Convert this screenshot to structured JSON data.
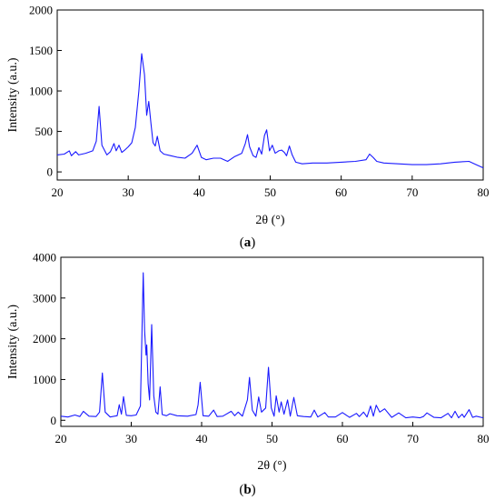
{
  "charts": [
    {
      "panel_label_open": "(",
      "panel_label_letter": "a",
      "panel_label_close": ")",
      "xlabel": "2θ (°)",
      "ylabel": "Intensity (a.u.)",
      "line_color": "#1a1aff"
    },
    {
      "panel_label_open": "(",
      "panel_label_letter": "b",
      "panel_label_close": ")",
      "xlabel": "2θ (°)",
      "ylabel": "Intensity (a.u.)",
      "line_color": "#1a1aff"
    }
  ],
  "chart_data": [
    {
      "type": "line",
      "title": "",
      "xlabel": "2θ (°)",
      "ylabel": "Intensity (a.u.)",
      "xlim": [
        20,
        80
      ],
      "ylim": [
        -100,
        2000
      ],
      "xticks": [
        20,
        30,
        40,
        50,
        60,
        70,
        80
      ],
      "yticks": [
        0,
        500,
        1000,
        1500,
        2000
      ],
      "grid": false,
      "series": [
        {
          "x": [
            20,
            21,
            21.7,
            22,
            22.6,
            23,
            24,
            25,
            25.5,
            25.9,
            26.3,
            27,
            27.5,
            28,
            28.3,
            28.7,
            29.1,
            29.5,
            30,
            30.5,
            31,
            31.5,
            31.9,
            32.3,
            32.6,
            32.9,
            33.2,
            33.5,
            33.8,
            34.1,
            34.5,
            35,
            36,
            37,
            38,
            39,
            39.7,
            40.3,
            41,
            42,
            43,
            44,
            45,
            46,
            46.5,
            46.8,
            47.1,
            47.6,
            48,
            48.4,
            48.8,
            49.2,
            49.5,
            49.9,
            50.3,
            50.7,
            51.2,
            51.6,
            52,
            52.3,
            52.7,
            53.1,
            53.6,
            54.5,
            56,
            58,
            60,
            62,
            63.5,
            64,
            64.5,
            65,
            66,
            68,
            70,
            72,
            74,
            76,
            78,
            79,
            80
          ],
          "y": [
            210,
            220,
            260,
            200,
            250,
            210,
            230,
            260,
            380,
            810,
            330,
            210,
            250,
            350,
            260,
            330,
            240,
            270,
            310,
            360,
            550,
            1000,
            1460,
            1200,
            700,
            870,
            600,
            360,
            320,
            440,
            260,
            220,
            200,
            180,
            170,
            230,
            330,
            180,
            150,
            170,
            170,
            130,
            190,
            230,
            350,
            460,
            310,
            200,
            180,
            300,
            220,
            450,
            520,
            260,
            330,
            230,
            260,
            270,
            240,
            200,
            320,
            210,
            120,
            100,
            110,
            110,
            120,
            130,
            150,
            220,
            180,
            130,
            110,
            100,
            90,
            90,
            100,
            120,
            130,
            90,
            50
          ]
        }
      ]
    },
    {
      "type": "line",
      "title": "",
      "xlabel": "2θ (°)",
      "ylabel": "Intensity (a.u.)",
      "xlim": [
        20,
        80
      ],
      "ylim": [
        -150,
        4000
      ],
      "xticks": [
        20,
        30,
        40,
        50,
        60,
        70,
        80
      ],
      "yticks": [
        0,
        1000,
        2000,
        3000,
        4000
      ],
      "grid": false,
      "series": [
        {
          "x": [
            20,
            21,
            22,
            22.7,
            23.2,
            24,
            25,
            25.5,
            25.9,
            26.3,
            27,
            28,
            28.3,
            28.6,
            28.9,
            29.3,
            30,
            30.7,
            31.3,
            31.7,
            31.9,
            32.1,
            32.2,
            32.4,
            32.6,
            32.9,
            33.2,
            33.5,
            33.8,
            34.1,
            34.4,
            35,
            35.5,
            36.5,
            38,
            39.2,
            39.5,
            39.8,
            40.2,
            41,
            41.7,
            42.2,
            43,
            44.2,
            44.7,
            45.2,
            45.8,
            46.5,
            46.8,
            47.2,
            47.7,
            48.1,
            48.5,
            49.1,
            49.5,
            49.9,
            50.3,
            50.6,
            51,
            51.3,
            51.7,
            52.2,
            52.6,
            53.1,
            53.6,
            54.5,
            55.5,
            56,
            56.5,
            57.5,
            58,
            59,
            60,
            61,
            62,
            62.4,
            63,
            63.5,
            64,
            64.4,
            64.8,
            65.3,
            66,
            67,
            68,
            69,
            70,
            71,
            71.5,
            72,
            73,
            74,
            75,
            75.5,
            76,
            76.5,
            77,
            77.3,
            78,
            78.5,
            79,
            80
          ],
          "y": [
            100,
            80,
            130,
            90,
            220,
            100,
            90,
            200,
            1160,
            200,
            80,
            110,
            380,
            150,
            580,
            120,
            110,
            130,
            350,
            3620,
            2200,
            1600,
            1850,
            900,
            500,
            2350,
            600,
            200,
            150,
            820,
            140,
            110,
            160,
            110,
            100,
            140,
            380,
            930,
            110,
            100,
            250,
            90,
            100,
            220,
            110,
            200,
            100,
            500,
            1050,
            250,
            100,
            570,
            200,
            300,
            1300,
            300,
            100,
            600,
            200,
            450,
            150,
            500,
            100,
            560,
            110,
            90,
            80,
            250,
            80,
            190,
            80,
            80,
            190,
            70,
            170,
            90,
            200,
            80,
            350,
            100,
            370,
            200,
            280,
            70,
            180,
            60,
            80,
            60,
            90,
            180,
            70,
            60,
            170,
            60,
            220,
            60,
            150,
            70,
            260,
            70,
            100,
            60
          ]
        }
      ]
    }
  ]
}
